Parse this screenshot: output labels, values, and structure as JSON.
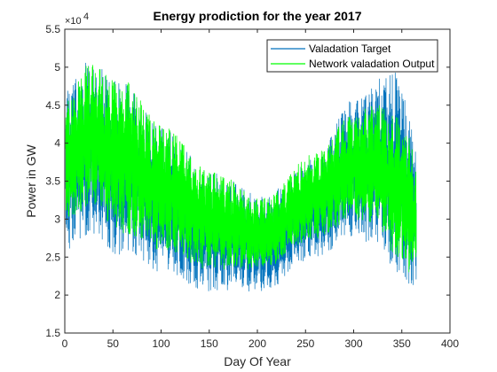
{
  "chart_data": {
    "type": "line",
    "title": "Energy prodiction for the year 2017",
    "xlabel": "Day Of Year",
    "ylabel": "Power in GW",
    "y_exponent_label": "×10",
    "y_exponent_power": "4",
    "xlim": [
      0,
      400
    ],
    "ylim": [
      15000,
      55000
    ],
    "x_ticks": [
      0,
      50,
      100,
      150,
      200,
      250,
      300,
      350,
      400
    ],
    "y_ticks": [
      15000,
      20000,
      25000,
      30000,
      35000,
      40000,
      45000,
      50000,
      55000
    ],
    "y_tick_labels": [
      "1.5",
      "2",
      "2.5",
      "3",
      "3.5",
      "4",
      "4.5",
      "5",
      "5.5"
    ],
    "grid": false,
    "legend_position": "top-right",
    "series": [
      {
        "name": "Valadation Target",
        "color": "#0072BD",
        "x_range": [
          1,
          365
        ],
        "envelope_days": [
          1,
          25,
          60,
          100,
          150,
          205,
          260,
          300,
          325,
          345,
          365
        ],
        "envelope_max": [
          47000,
          51500,
          48000,
          42000,
          36500,
          33000,
          38000,
          46000,
          48500,
          49500,
          41000
        ],
        "envelope_min": [
          26000,
          28000,
          25000,
          23000,
          20500,
          20500,
          25000,
          27000,
          27000,
          23000,
          20500
        ]
      },
      {
        "name": "Network valadation Output",
        "color": "#00FF00",
        "x_range": [
          1,
          365
        ],
        "envelope_days": [
          1,
          25,
          60,
          100,
          150,
          205,
          260,
          300,
          325,
          345,
          365
        ],
        "envelope_max": [
          46000,
          51000,
          49000,
          43000,
          37000,
          33000,
          39000,
          44500,
          45500,
          44000,
          40000
        ],
        "envelope_min": [
          29000,
          31000,
          27500,
          25500,
          23000,
          23000,
          27000,
          29500,
          28500,
          24000,
          21500
        ]
      }
    ]
  }
}
